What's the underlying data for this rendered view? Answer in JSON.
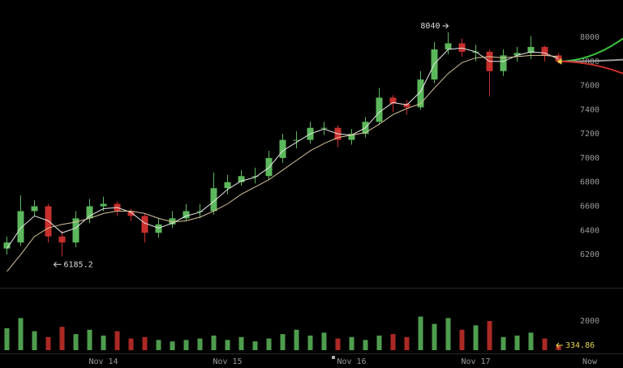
{
  "chart_data": {
    "type": "candlestick",
    "categories": [
      null,
      null,
      null,
      null,
      null,
      null,
      null,
      "Nov 14",
      null,
      null,
      null,
      null,
      null,
      null,
      null,
      null,
      "Nov 15",
      null,
      null,
      null,
      null,
      null,
      null,
      null,
      null,
      "Nov 16",
      null,
      null,
      null,
      null,
      null,
      null,
      null,
      null,
      "Nov 17",
      null,
      null,
      null,
      null,
      null,
      null
    ],
    "open": [
      6250,
      6300,
      6560,
      6600,
      6350,
      6300,
      6500,
      6600,
      6620,
      6560,
      6520,
      6380,
      6450,
      6500,
      6560,
      6560,
      6750,
      6800,
      6850,
      6850,
      7000,
      7150,
      7150,
      7250,
      7250,
      7150,
      7200,
      7300,
      7500,
      7450,
      7420,
      7650,
      7900,
      7950,
      7880,
      7880,
      7720,
      7850,
      7870,
      7920,
      7850
    ],
    "high": [
      6350,
      6690,
      6650,
      6620,
      6400,
      6560,
      6660,
      6680,
      6640,
      6580,
      6540,
      6500,
      6560,
      6620,
      6620,
      6880,
      6860,
      6900,
      6920,
      7060,
      7200,
      7220,
      7300,
      7300,
      7270,
      7240,
      7340,
      7580,
      7520,
      7480,
      7720,
      7960,
      8040,
      7990,
      7940,
      7900,
      7900,
      7920,
      8010,
      7930,
      7870
    ],
    "low": [
      6200,
      6270,
      6520,
      6300,
      6185.2,
      6260,
      6460,
      6560,
      6520,
      6480,
      6300,
      6340,
      6420,
      6480,
      6500,
      6530,
      6700,
      6770,
      6790,
      6820,
      6960,
      7080,
      7120,
      7190,
      7090,
      7110,
      7170,
      7280,
      7380,
      7360,
      7400,
      7620,
      7860,
      7840,
      7800,
      7510,
      7680,
      7800,
      7820,
      7800,
      7780
    ],
    "close": [
      6300,
      6560,
      6600,
      6350,
      6300,
      6500,
      6600,
      6620,
      6560,
      6520,
      6380,
      6450,
      6500,
      6560,
      6560,
      6750,
      6800,
      6850,
      6850,
      7000,
      7150,
      7150,
      7250,
      7250,
      7150,
      7200,
      7300,
      7500,
      7450,
      7420,
      7650,
      7900,
      7950,
      7880,
      7880,
      7720,
      7850,
      7870,
      7920,
      7850,
      7800
    ],
    "up_color": "#5cb85c",
    "down_color": "#c9302c",
    "moving_averages": [
      {
        "color": "#e8e8e8",
        "values": [
          6250,
          6420,
          6520,
          6480,
          6380,
          6420,
          6520,
          6580,
          6590,
          6550,
          6460,
          6420,
          6460,
          6520,
          6550,
          6640,
          6740,
          6810,
          6840,
          6920,
          7060,
          7130,
          7200,
          7240,
          7200,
          7190,
          7250,
          7380,
          7460,
          7440,
          7550,
          7780,
          7900,
          7910,
          7880,
          7800,
          7800,
          7850,
          7880,
          7870,
          7820
        ]
      },
      {
        "color": "#d9c49a",
        "values": [
          6060,
          6200,
          6350,
          6420,
          6450,
          6470,
          6500,
          6540,
          6560,
          6560,
          6540,
          6500,
          6470,
          6480,
          6510,
          6560,
          6620,
          6700,
          6760,
          6820,
          6900,
          6980,
          7060,
          7120,
          7170,
          7190,
          7210,
          7280,
          7360,
          7410,
          7450,
          7580,
          7700,
          7790,
          7830,
          7840,
          7830,
          7840,
          7850,
          7850,
          7840
        ]
      }
    ],
    "ylim": [
      5925,
      8309
    ],
    "yticks": [
      6200,
      6400,
      6600,
      6800,
      7000,
      7200,
      7400,
      7600,
      7800,
      8000
    ],
    "projection": [
      {
        "color": "#3cc63c",
        "value": 7990
      },
      {
        "color": "#9a9a9a",
        "value": 7815
      },
      {
        "color": "#c9302c",
        "value": 7700
      }
    ],
    "volume": {
      "values": [
        1500,
        2200,
        1300,
        900,
        1600,
        1100,
        1400,
        1000,
        1300,
        800,
        900,
        700,
        600,
        700,
        800,
        1000,
        700,
        900,
        600,
        800,
        1100,
        1400,
        1000,
        1200,
        800,
        900,
        700,
        1000,
        1100,
        900,
        2300,
        1800,
        2200,
        1400,
        1700,
        2000,
        900,
        1000,
        1200,
        800,
        334.86
      ],
      "ylim": [
        0,
        4000
      ],
      "yticks": [
        2000
      ],
      "label_color": "#e8d44d"
    },
    "now_label": "Now"
  }
}
